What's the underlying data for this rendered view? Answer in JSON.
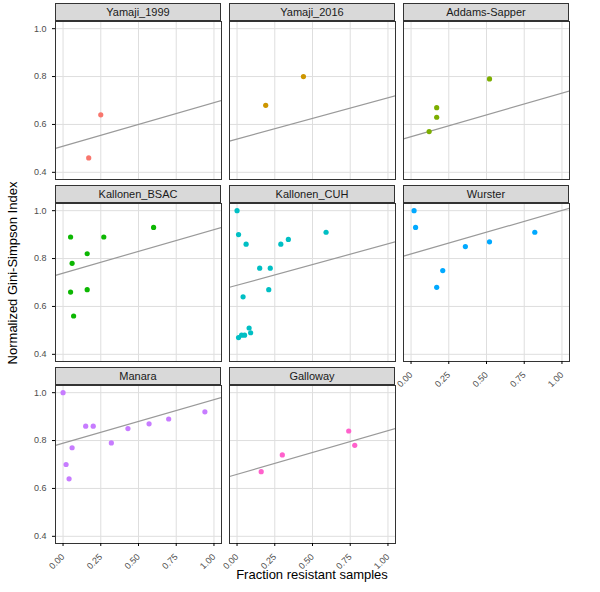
{
  "chart_data": {
    "type": "scatter",
    "xlabel": "Fraction resistant samples",
    "ylabel": "Normalized Gini-Simpson Index",
    "xlim": [
      -0.05,
      1.05
    ],
    "ylim": [
      0.37,
      1.03
    ],
    "xticks": [
      {
        "value": 0,
        "label": "0.00"
      },
      {
        "value": 0.25,
        "label": "0.25"
      },
      {
        "value": 0.5,
        "label": "0.50"
      },
      {
        "value": 0.75,
        "label": "0.75"
      },
      {
        "value": 1,
        "label": "1.00"
      }
    ],
    "yticks": [
      0.4,
      0.6,
      0.8,
      {
        "value": 1,
        "label": "1.0"
      }
    ],
    "grid": true,
    "series": [
      {
        "name": "Yamaji_1999",
        "color": "#F8766D",
        "x": [
          0.25,
          0.17
        ],
        "values": [
          0.64,
          0.46
        ],
        "fit": {
          "x": [
            -0.05,
            1.05
          ],
          "values": [
            0.5,
            0.7
          ]
        }
      },
      {
        "name": "Yamaji_2016",
        "color": "#CD9600",
        "x": [
          0.19,
          0.44
        ],
        "values": [
          0.68,
          0.8
        ],
        "fit": {
          "x": [
            -0.05,
            1.05
          ],
          "values": [
            0.53,
            0.72
          ]
        }
      },
      {
        "name": "Addams-Sapper",
        "color": "#7CAE00",
        "x": [
          0.12,
          0.17,
          0.17,
          0.52
        ],
        "values": [
          0.57,
          0.63,
          0.67,
          0.79
        ],
        "fit": {
          "x": [
            -0.05,
            1.05
          ],
          "values": [
            0.54,
            0.74
          ]
        }
      },
      {
        "name": "Kallonen_BSAC",
        "color": "#0CB702",
        "x": [
          0.05,
          0.05,
          0.06,
          0.07,
          0.16,
          0.16,
          0.27,
          0.6
        ],
        "values": [
          0.89,
          0.66,
          0.78,
          0.56,
          0.82,
          0.67,
          0.89,
          0.93
        ],
        "fit": {
          "x": [
            -0.05,
            1.05
          ],
          "values": [
            0.73,
            0.93
          ]
        }
      },
      {
        "name": "Kallonen_CUH",
        "color": "#00BFC4",
        "x": [
          0.0,
          0.01,
          0.06,
          0.04,
          0.01,
          0.03,
          0.05,
          0.08,
          0.09,
          0.15,
          0.21,
          0.22,
          0.29,
          0.34,
          0.59
        ],
        "values": [
          1.0,
          0.9,
          0.86,
          0.64,
          0.47,
          0.48,
          0.48,
          0.51,
          0.49,
          0.76,
          0.67,
          0.76,
          0.86,
          0.88,
          0.91
        ],
        "fit": {
          "x": [
            -0.05,
            1.05
          ],
          "values": [
            0.68,
            0.87
          ]
        }
      },
      {
        "name": "Wurster",
        "color": "#00A9FF",
        "x": [
          0.02,
          0.03,
          0.17,
          0.21,
          0.36,
          0.52,
          0.82
        ],
        "values": [
          1.0,
          0.93,
          0.68,
          0.75,
          0.85,
          0.87,
          0.91
        ],
        "fit": {
          "x": [
            -0.05,
            1.05
          ],
          "values": [
            0.81,
            1.01
          ]
        }
      },
      {
        "name": "Manara",
        "color": "#C77CFF",
        "x": [
          0.0,
          0.02,
          0.04,
          0.06,
          0.15,
          0.2,
          0.32,
          0.43,
          0.57,
          0.7,
          0.94
        ],
        "values": [
          1.0,
          0.7,
          0.64,
          0.77,
          0.86,
          0.86,
          0.79,
          0.85,
          0.87,
          0.89,
          0.92
        ],
        "fit": {
          "x": [
            -0.05,
            1.05
          ],
          "values": [
            0.78,
            0.98
          ]
        }
      },
      {
        "name": "Galloway",
        "color": "#FF61CC",
        "x": [
          0.16,
          0.3,
          0.74,
          0.78
        ],
        "values": [
          0.67,
          0.74,
          0.84,
          0.78
        ],
        "fit": {
          "x": [
            -0.05,
            1.05
          ],
          "values": [
            0.65,
            0.85
          ]
        }
      }
    ]
  }
}
